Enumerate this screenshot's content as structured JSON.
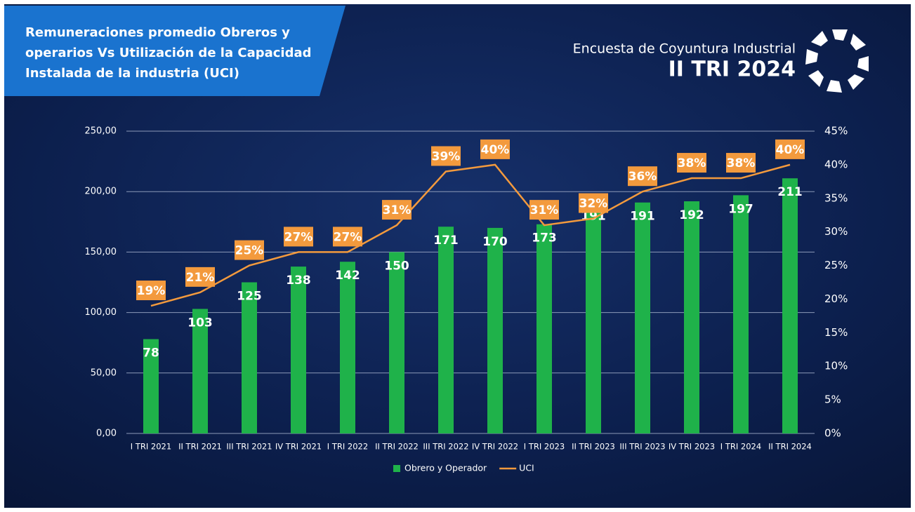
{
  "header": {
    "survey": "Encuesta de Coyuntura Industrial",
    "period": "II TRI 2024"
  },
  "chart_data": {
    "type": "bar-line",
    "title": [
      "Remuneraciones promedio Obreros y",
      "operarios Vs Utilización de la Capacidad",
      "Instalada de la industria (UCI)"
    ],
    "categories": [
      "I TRI 2021",
      "II TRI 2021",
      "III TRI 2021",
      "IV TRI 2021",
      "I TRI 2022",
      "II TRI 2022",
      "III TRI 2022",
      "IV TRI 2022",
      "I TRI 2023",
      "II TRI 2023",
      "III TRI 2023",
      "IV TRI 2023",
      "I TRI 2024",
      "II TRI 2024"
    ],
    "series": [
      {
        "name": "Obrero y Operador",
        "type": "bar",
        "color": "#1fb24a",
        "values": [
          78,
          103,
          125,
          138,
          142,
          150,
          171,
          170,
          173,
          191,
          191,
          192,
          197,
          211
        ]
      },
      {
        "name": "UCI",
        "type": "line",
        "axis": "y2",
        "color": "#f39a3d",
        "values": [
          19,
          21,
          25,
          27,
          27,
          31,
          39,
          40,
          31,
          32,
          36,
          38,
          38,
          40
        ],
        "value_labels": [
          "19%",
          "21%",
          "25%",
          "27%",
          "27%",
          "31%",
          "39%",
          "40%",
          "31%",
          "32%",
          "36%",
          "38%",
          "38%",
          "40%"
        ]
      }
    ],
    "ylim": [
      0,
      250
    ],
    "yticks": [
      {
        "value": 0,
        "label": "0,00"
      },
      {
        "value": 50,
        "label": "50,00"
      },
      {
        "value": 100,
        "label": "100,00"
      },
      {
        "value": 150,
        "label": "150,00"
      },
      {
        "value": 200,
        "label": "200,00"
      },
      {
        "value": 250,
        "label": "250,00"
      }
    ],
    "y2lim": [
      0,
      45
    ],
    "y2ticks": [
      {
        "value": 0,
        "label": "0%"
      },
      {
        "value": 5,
        "label": "5%"
      },
      {
        "value": 10,
        "label": "10%"
      },
      {
        "value": 15,
        "label": "15%"
      },
      {
        "value": 20,
        "label": "20%"
      },
      {
        "value": 25,
        "label": "25%"
      },
      {
        "value": 30,
        "label": "30%"
      },
      {
        "value": 35,
        "label": "35%"
      },
      {
        "value": 40,
        "label": "40%"
      },
      {
        "value": 45,
        "label": "45%"
      }
    ],
    "grid": true,
    "legend": "bottom"
  }
}
